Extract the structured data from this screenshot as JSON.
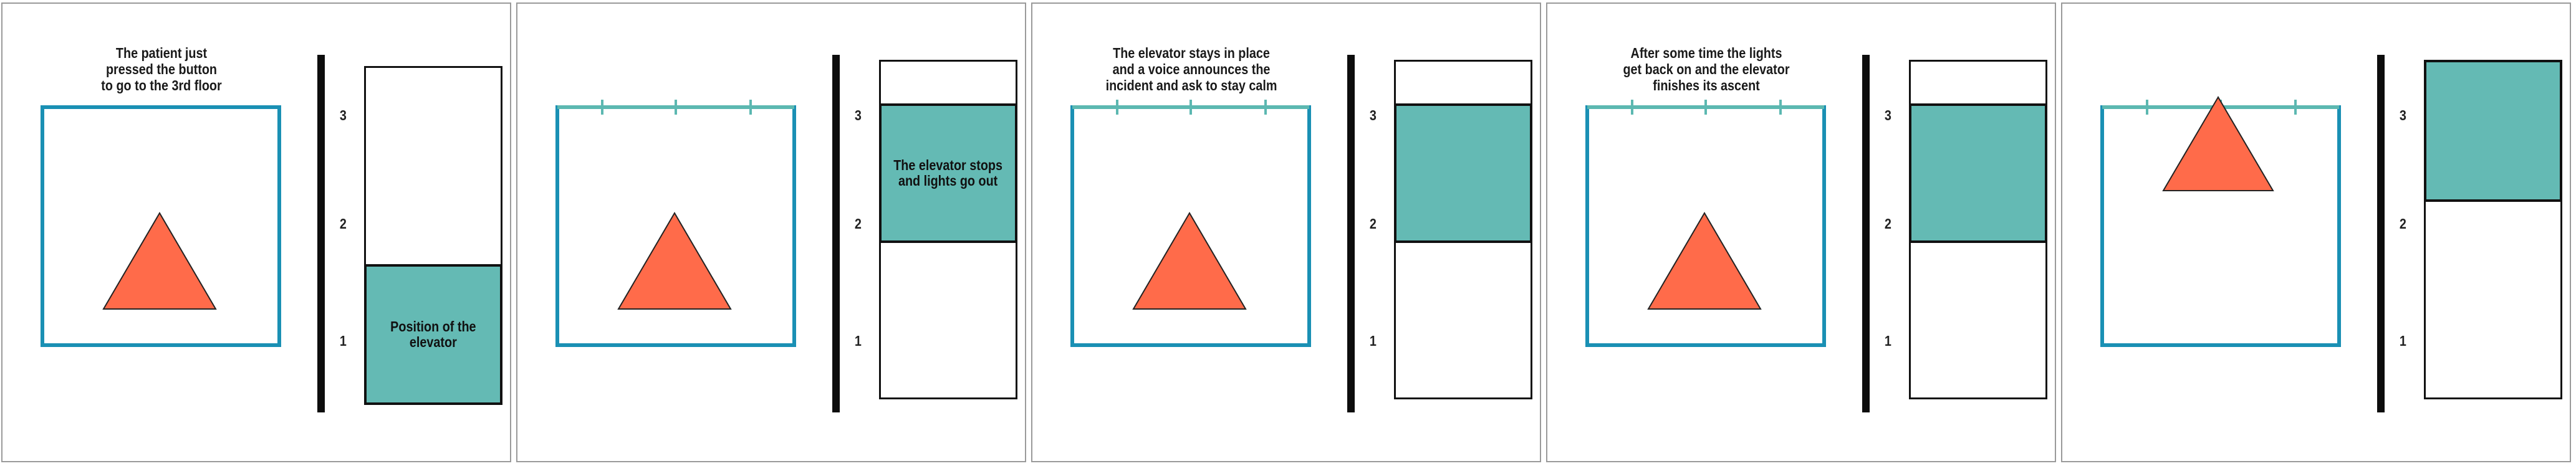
{
  "colors": {
    "room_border": "#1a90b4",
    "tick": "#5cb8b1",
    "cabin_fill": "#64bab4",
    "person": "#ff6b4a",
    "pole": "#0d0d0d",
    "panel_border": "#9a9a9a"
  },
  "floor_labels": [
    "3",
    "2",
    "1"
  ],
  "panels": [
    {
      "caption": "The patient just\npressed the button\nto go to the 3rd floor",
      "cabin_label": "Position of the\nelevator",
      "cabin_position": "floor-1",
      "ceiling_ticks": false,
      "person": "floor-level"
    },
    {
      "caption": "",
      "cabin_label": "The elevator stops\nand lights go out",
      "cabin_position": "between-2-3",
      "ceiling_ticks": true,
      "person": "floor-level"
    },
    {
      "caption": "The elevator stays in place\nand a voice announces the\nincident and ask to stay calm",
      "cabin_label": "",
      "cabin_position": "between-2-3",
      "ceiling_ticks": true,
      "person": "floor-level"
    },
    {
      "caption": "After some time the lights\nget back on and the elevator\nfinishes its ascent",
      "cabin_label": "",
      "cabin_position": "between-2-3",
      "ceiling_ticks": true,
      "person": "floor-level"
    },
    {
      "caption": "",
      "cabin_label": "",
      "cabin_position": "floor-3",
      "ceiling_ticks": true,
      "person": "raised"
    }
  ]
}
